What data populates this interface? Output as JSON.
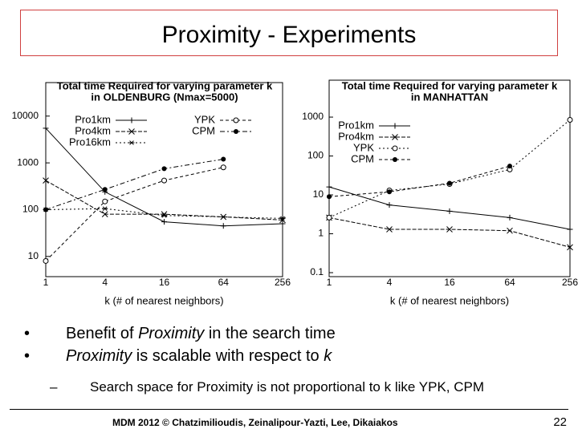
{
  "slide": {
    "title": "Proximity - Experiments",
    "bullets": [
      {
        "marker": "•",
        "parts": [
          {
            "text": "Benefit of "
          },
          {
            "text": "Proximity",
            "italic": true
          },
          {
            "text": " in the search time"
          }
        ]
      },
      {
        "marker": "•",
        "parts": [
          {
            "text": "Proximity",
            "italic": true
          },
          {
            "text": " is scalable with respect to "
          },
          {
            "text": "k",
            "italic": true
          }
        ]
      },
      {
        "marker": "–",
        "parts": [
          {
            "text": "Search space for Proximity is not proportional to k like YPK, CPM"
          }
        ]
      }
    ],
    "footer": "MDM 2012 © Chatzimilioudis, Zeinalipour-Yazti, Lee, Dikaiakos",
    "page": "22"
  },
  "chart_data": [
    {
      "type": "line",
      "title": [
        "Total time Required for varying parameter k",
        "in OLDENBURG (Nmax=5000)"
      ],
      "x_label": "k (# of nearest neighbors)",
      "categories": [
        "1",
        "4",
        "16",
        "64",
        "256"
      ],
      "log_y": true,
      "ylim": [
        3.7,
        52000
      ],
      "yticks": [
        10,
        100,
        1000,
        10000
      ],
      "series": [
        {
          "name": "Pro1km",
          "color": "#000000",
          "marker": "+",
          "values": [
            5500,
            240,
            55,
            45,
            50
          ]
        },
        {
          "name": "Pro4km",
          "color": "#000000",
          "marker": "x",
          "values": [
            420,
            80,
            80,
            70,
            60
          ]
        },
        {
          "name": "Pro16km",
          "color": "#000000",
          "marker": "*",
          "values": [
            100,
            105,
            75,
            70,
            65
          ]
        },
        {
          "name": "YPK",
          "color": "#000000",
          "marker": "o",
          "values": [
            8,
            150,
            420,
            800,
            null
          ]
        },
        {
          "name": "CPM",
          "color": "#000000",
          "marker": "dot",
          "values": [
            100,
            270,
            750,
            1200,
            null
          ]
        }
      ]
    },
    {
      "type": "line",
      "title": [
        "Total time Required for varying parameter k",
        "in MANHATTAN"
      ],
      "x_label": "k (# of nearest neighbors)",
      "categories": [
        "1",
        "4",
        "16",
        "64",
        "256"
      ],
      "log_y": true,
      "ylim": [
        0.079,
        8900
      ],
      "yticks": [
        0.1,
        1,
        10,
        100,
        1000
      ],
      "series": [
        {
          "name": "Pro1km",
          "color": "#000000",
          "marker": "+",
          "values": [
            16,
            5.5,
            3.8,
            2.6,
            1.3
          ]
        },
        {
          "name": "Pro4km",
          "color": "#000000",
          "marker": "x",
          "values": [
            2.6,
            1.3,
            1.3,
            1.2,
            0.45
          ]
        },
        {
          "name": "YPK",
          "color": "#000000",
          "marker": "o",
          "values": [
            2.6,
            13,
            19,
            45,
            850
          ]
        },
        {
          "name": "CPM",
          "color": "#000000",
          "marker": "dot",
          "values": [
            9,
            12,
            20,
            55,
            null
          ]
        }
      ]
    }
  ]
}
